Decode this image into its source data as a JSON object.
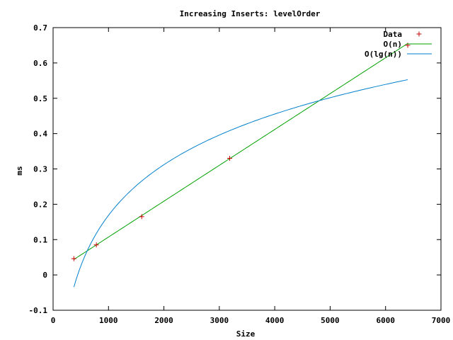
{
  "chart_data": {
    "type": "line",
    "title": "Increasing Inserts: levelOrder",
    "xlabel": "Size",
    "ylabel": "ms",
    "xlim": [
      0,
      7000
    ],
    "ylim": [
      -0.1,
      0.7
    ],
    "x_ticks": [
      0,
      1000,
      2000,
      3000,
      4000,
      5000,
      6000,
      7000
    ],
    "x_tick_labels": [
      "0",
      "1000",
      "2000",
      "3000",
      "4000",
      "5000",
      "6000",
      "7000"
    ],
    "y_ticks": [
      -0.1,
      0,
      0.1,
      0.2,
      0.3,
      0.4,
      0.5,
      0.6,
      0.7
    ],
    "y_tick_labels": [
      "-0.1",
      "0",
      "0.1",
      "0.2",
      "0.3",
      "0.4",
      "0.5",
      "0.6",
      "0.7"
    ],
    "grid": false,
    "legend_position": "top-right",
    "series": [
      {
        "name": "Data",
        "style": "points",
        "marker": "+",
        "color": "#cc0000",
        "x": [
          375,
          781,
          1600,
          3187,
          6400
        ],
        "y": [
          0.046,
          0.085,
          0.165,
          0.33,
          0.65
        ]
      },
      {
        "name": "O(n)",
        "style": "line",
        "color": "#00a000",
        "fit": "linear",
        "slope": 0.0001015,
        "intercept": 0.0057,
        "x_range": [
          375,
          6400
        ]
      },
      {
        "name": "O(lg(n))",
        "style": "line",
        "color": "#0080cc",
        "fit": "log2",
        "coef": 0.1434,
        "intercept": -1.2605,
        "x_range": [
          375,
          6400
        ]
      }
    ]
  }
}
